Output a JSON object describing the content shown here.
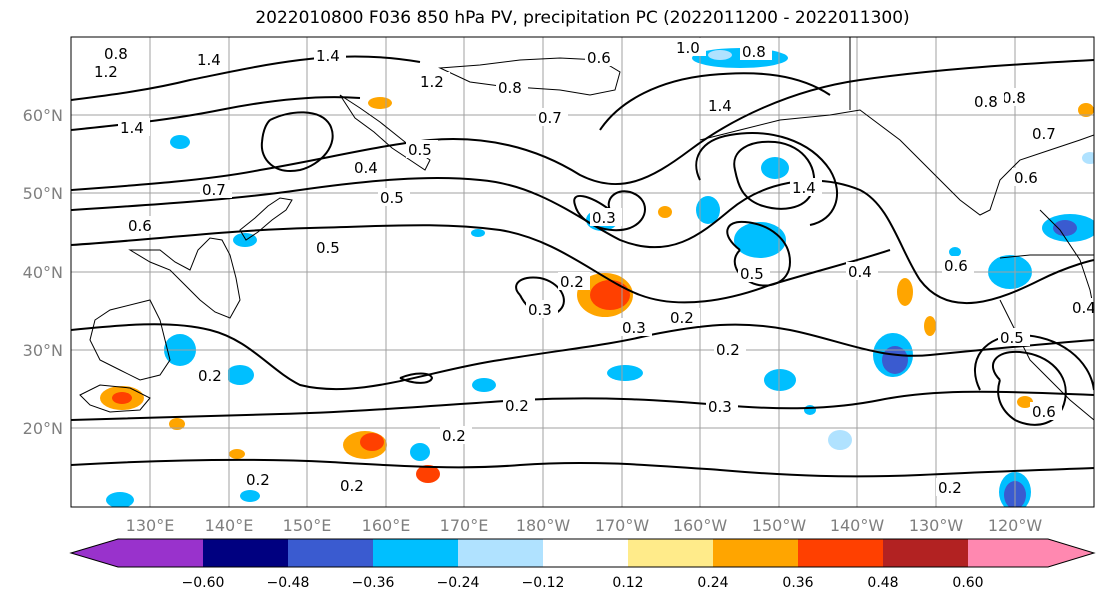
{
  "title": "2022010800 F036 850 hPa PV, precipitation PC (2022011200 - 2022011300)",
  "lat_labels": [
    "60°N",
    "50°N",
    "40°N",
    "30°N",
    "20°N"
  ],
  "lon_labels": [
    "130°E",
    "140°E",
    "150°E",
    "160°E",
    "170°E",
    "180°W",
    "170°W",
    "160°W",
    "150°W",
    "140°W",
    "130°W",
    "120°W"
  ],
  "colorbar": {
    "ticks": [
      "−0.60",
      "−0.48",
      "−0.36",
      "−0.24",
      "−0.12",
      "0.12",
      "0.24",
      "0.36",
      "0.48",
      "0.60"
    ],
    "colors": [
      "#9932cc",
      "#000080",
      "#3a5bd0",
      "#00bfff",
      "#b0e2ff",
      "#ffffff",
      "#ffeb8a",
      "#ffa500",
      "#ff4000",
      "#b22222",
      "#ff88b0"
    ]
  },
  "contour_labels": [
    "1.4",
    "1.4",
    "1.2",
    "1.4",
    "0.8",
    "0.6",
    "1.0",
    "0.8",
    "0.7",
    "0.8",
    "1.4",
    "0.4",
    "0.5",
    "0.5",
    "0.5",
    "0.7",
    "0.6",
    "0.2",
    "0.3",
    "0.3",
    "0.2",
    "0.2",
    "0.4",
    "0.6",
    "0.5",
    "0.2",
    "0.3",
    "0.2",
    "0.2",
    "0.2",
    "0.2",
    "0.2",
    "0.5",
    "0.6",
    "0.4",
    "0.3",
    "0.6",
    "0.8",
    "1.2",
    "0.8",
    "0.7",
    "1.4"
  ]
}
